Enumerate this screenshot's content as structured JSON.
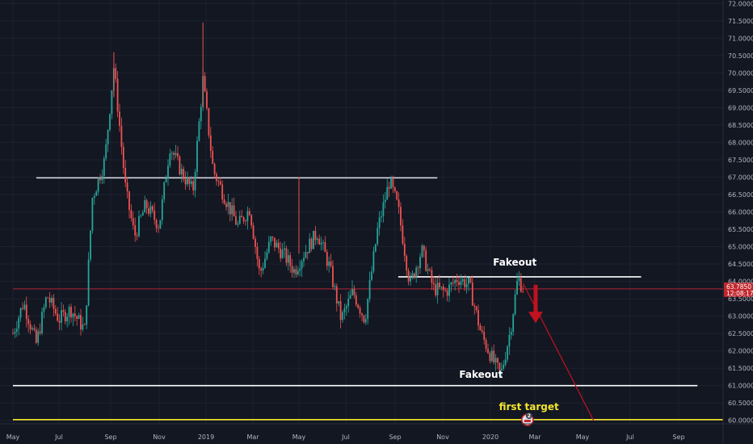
{
  "chart_data": {
    "type": "candlestick",
    "title": "",
    "xlabel": "",
    "ylabel": "",
    "ylim": [
      59.9,
      72.1
    ],
    "grid": true,
    "x_ticks": [
      "May",
      "Jul",
      "Sep",
      "Nov",
      "2019",
      "Mar",
      "May",
      "Jul",
      "Sep",
      "Nov",
      "2020",
      "Mar",
      "May",
      "Jul",
      "Sep"
    ],
    "y_ticks": [
      "72.0000",
      "71.5000",
      "71.0000",
      "70.5000",
      "70.0000",
      "69.5000",
      "69.0000",
      "68.5000",
      "68.0000",
      "67.5000",
      "67.0000",
      "66.5000",
      "66.0000",
      "65.5000",
      "65.0000",
      "64.5000",
      "64.0000",
      "63.5000",
      "63.0000",
      "62.5000",
      "62.0000",
      "61.5000",
      "61.0000",
      "60.5000",
      "60.0000"
    ],
    "series": [
      {
        "values": [
          {
            "date": "2018-05-01",
            "close": 62.5
          },
          {
            "date": "2018-05-15",
            "close": 63.4
          },
          {
            "date": "2018-06-01",
            "close": 62.2
          },
          {
            "date": "2018-06-15",
            "close": 63.6
          },
          {
            "date": "2018-07-01",
            "close": 62.9
          },
          {
            "date": "2018-07-15",
            "close": 63.2
          },
          {
            "date": "2018-08-01",
            "close": 62.6
          },
          {
            "date": "2018-08-10",
            "close": 66.4
          },
          {
            "date": "2018-08-25",
            "close": 67.5
          },
          {
            "date": "2018-09-05",
            "close": 70.2
          },
          {
            "date": "2018-09-20",
            "close": 66.6
          },
          {
            "date": "2018-10-01",
            "close": 65.3
          },
          {
            "date": "2018-10-15",
            "close": 66.2
          },
          {
            "date": "2018-11-01",
            "close": 65.6
          },
          {
            "date": "2018-11-15",
            "close": 67.9
          },
          {
            "date": "2018-12-01",
            "close": 67.1
          },
          {
            "date": "2018-12-15",
            "close": 66.6
          },
          {
            "date": "2018-12-28",
            "close": 69.8
          },
          {
            "date": "2019-01-10",
            "close": 67.2
          },
          {
            "date": "2019-01-25",
            "close": 66.4
          },
          {
            "date": "2019-02-10",
            "close": 65.6
          },
          {
            "date": "2019-02-25",
            "close": 66.1
          },
          {
            "date": "2019-03-10",
            "close": 64.2
          },
          {
            "date": "2019-03-25",
            "close": 65.2
          },
          {
            "date": "2019-04-10",
            "close": 64.8
          },
          {
            "date": "2019-04-25",
            "close": 64.3
          },
          {
            "date": "2019-05-10",
            "close": 64.9
          },
          {
            "date": "2019-05-25",
            "close": 65.4
          },
          {
            "date": "2019-06-10",
            "close": 64.4
          },
          {
            "date": "2019-06-25",
            "close": 62.9
          },
          {
            "date": "2019-07-10",
            "close": 63.7
          },
          {
            "date": "2019-07-25",
            "close": 62.9
          },
          {
            "date": "2019-08-10",
            "close": 65.5
          },
          {
            "date": "2019-08-25",
            "close": 66.9
          },
          {
            "date": "2019-09-05",
            "close": 66.1
          },
          {
            "date": "2019-09-20",
            "close": 63.9
          },
          {
            "date": "2019-10-05",
            "close": 64.9
          },
          {
            "date": "2019-10-20",
            "close": 63.8
          },
          {
            "date": "2019-11-05",
            "close": 63.7
          },
          {
            "date": "2019-11-20",
            "close": 64.1
          },
          {
            "date": "2019-12-05",
            "close": 63.9
          },
          {
            "date": "2019-12-20",
            "close": 62.5
          },
          {
            "date": "2020-01-05",
            "close": 61.7
          },
          {
            "date": "2020-01-15",
            "close": 61.3
          },
          {
            "date": "2020-01-28",
            "close": 62.6
          },
          {
            "date": "2020-02-07",
            "close": 64.1
          },
          {
            "date": "2020-02-14",
            "close": 63.8
          }
        ]
      }
    ],
    "horizontal_lines": [
      {
        "value": 66.98,
        "from": "2018-06-01",
        "to": "2019-10-25",
        "color": "#d1d4dc"
      },
      {
        "value": 64.13,
        "from": "2019-09-05",
        "to": "2020-07-15",
        "color": "#ffffff"
      },
      {
        "value": 61.0,
        "from": "2018-05-01",
        "to": "2020-09-25",
        "color": "#ffffff"
      },
      {
        "value": 60.02,
        "from": "2018-05-01",
        "to": "2020-10-31",
        "color": "#f3e52c"
      },
      {
        "value": 63.785,
        "from": "2018-05-01",
        "to": "2020-10-31",
        "color": "#b2243a"
      }
    ],
    "trend_line": {
      "from": {
        "date": "2020-02-14",
        "value": 63.95
      },
      "to": {
        "date": "2020-05-15",
        "value": 60.0
      },
      "color": "#c1121f"
    },
    "down_arrow": {
      "date": "2020-03-02",
      "value_top": 63.9,
      "value_bottom": 62.8,
      "color": "#c1121f"
    },
    "annotations": [
      {
        "text": "Fakeout",
        "date": "2020-02-03",
        "value": 64.45,
        "color": "#ffffff"
      },
      {
        "text": "Fakeout",
        "date": "2019-12-20",
        "value": 61.22,
        "color": "#ffffff"
      },
      {
        "text": "first target",
        "date": "2020-02-22",
        "value": 60.3,
        "color": "#f3e52c"
      }
    ],
    "price_label": {
      "value": 63.785,
      "text": "63.7850",
      "countdown": "12:08:17",
      "color": "#c1272d"
    },
    "event_badge": {
      "date": "2020-02-20",
      "text": "2"
    },
    "colors": {
      "background": "#131722",
      "up": "#26a69a",
      "down": "#ef5350",
      "grid": "#1e2230",
      "axis_text": "#b2b5be"
    }
  }
}
